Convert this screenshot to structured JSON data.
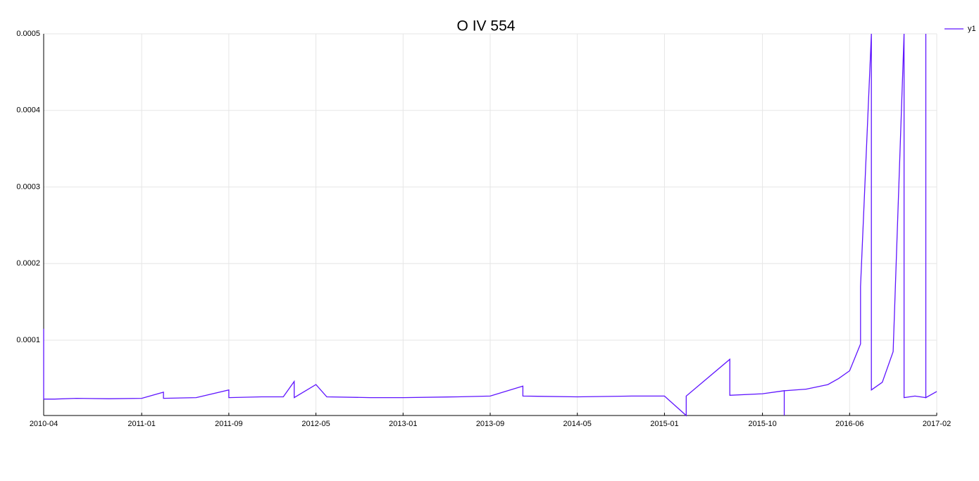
{
  "chart_data": {
    "type": "line",
    "title": "O IV 554",
    "x": [
      "2010-04",
      "2010-04",
      "2010-05",
      "2010-07",
      "2010-10",
      "2011-01",
      "2011-03",
      "2011-03",
      "2011-06",
      "2011-09",
      "2011-09",
      "2011-12",
      "2012-02",
      "2012-03",
      "2012-03",
      "2012-05",
      "2012-06",
      "2012-10",
      "2013-01",
      "2013-06",
      "2013-09",
      "2013-12",
      "2013-12",
      "2014-05",
      "2014-10",
      "2015-01",
      "2015-03",
      "2015-03",
      "2015-07",
      "2015-07",
      "2015-10",
      "2015-12",
      "2015-12",
      "2015-12",
      "2016-02",
      "2016-04",
      "2016-05",
      "2016-06",
      "2016-07",
      "2016-07",
      "2016-08",
      "2016-08",
      "2016-09",
      "2016-10",
      "2016-11",
      "2016-11",
      "2016-12",
      "2017-01",
      "2017-01",
      "2017-01",
      "2017-02"
    ],
    "series": [
      {
        "name": "y1",
        "color": "#5f14ff",
        "values": [
          0.000115,
          2.3e-05,
          2.3e-05,
          2.4e-05,
          2.35e-05,
          2.4e-05,
          3.2e-05,
          2.4e-05,
          2.5e-05,
          3.5e-05,
          2.5e-05,
          2.6e-05,
          2.6e-05,
          4.6e-05,
          2.5e-05,
          4.2e-05,
          2.6e-05,
          2.5e-05,
          2.5e-05,
          2.6e-05,
          2.7e-05,
          4e-05,
          2.7e-05,
          2.6e-05,
          2.7e-05,
          2.7e-05,
          1.6e-06,
          2.7e-05,
          7.5e-05,
          2.8e-05,
          3e-05,
          3.4e-05,
          1.6e-06,
          3.4e-05,
          3.6e-05,
          4.2e-05,
          5e-05,
          6e-05,
          9.5e-05,
          0.00017,
          0.0005,
          3.5e-05,
          4.5e-05,
          8.5e-05,
          0.0005,
          2.5e-05,
          2.7e-05,
          2.5e-05,
          0.0005,
          2.5e-05,
          3.3e-05
        ]
      }
    ],
    "xlim": [
      "2010-04",
      "2017-02"
    ],
    "xticks": [
      "2010-04",
      "2011-01",
      "2011-09",
      "2012-05",
      "2013-01",
      "2013-09",
      "2014-05",
      "2015-01",
      "2015-10",
      "2016-06",
      "2017-02"
    ],
    "ylim": [
      1.6e-06,
      0.0005
    ],
    "yticks": [
      0.0001,
      0.0002,
      0.0003,
      0.0004,
      0.0005
    ],
    "grid": true,
    "legend": "top-right"
  }
}
